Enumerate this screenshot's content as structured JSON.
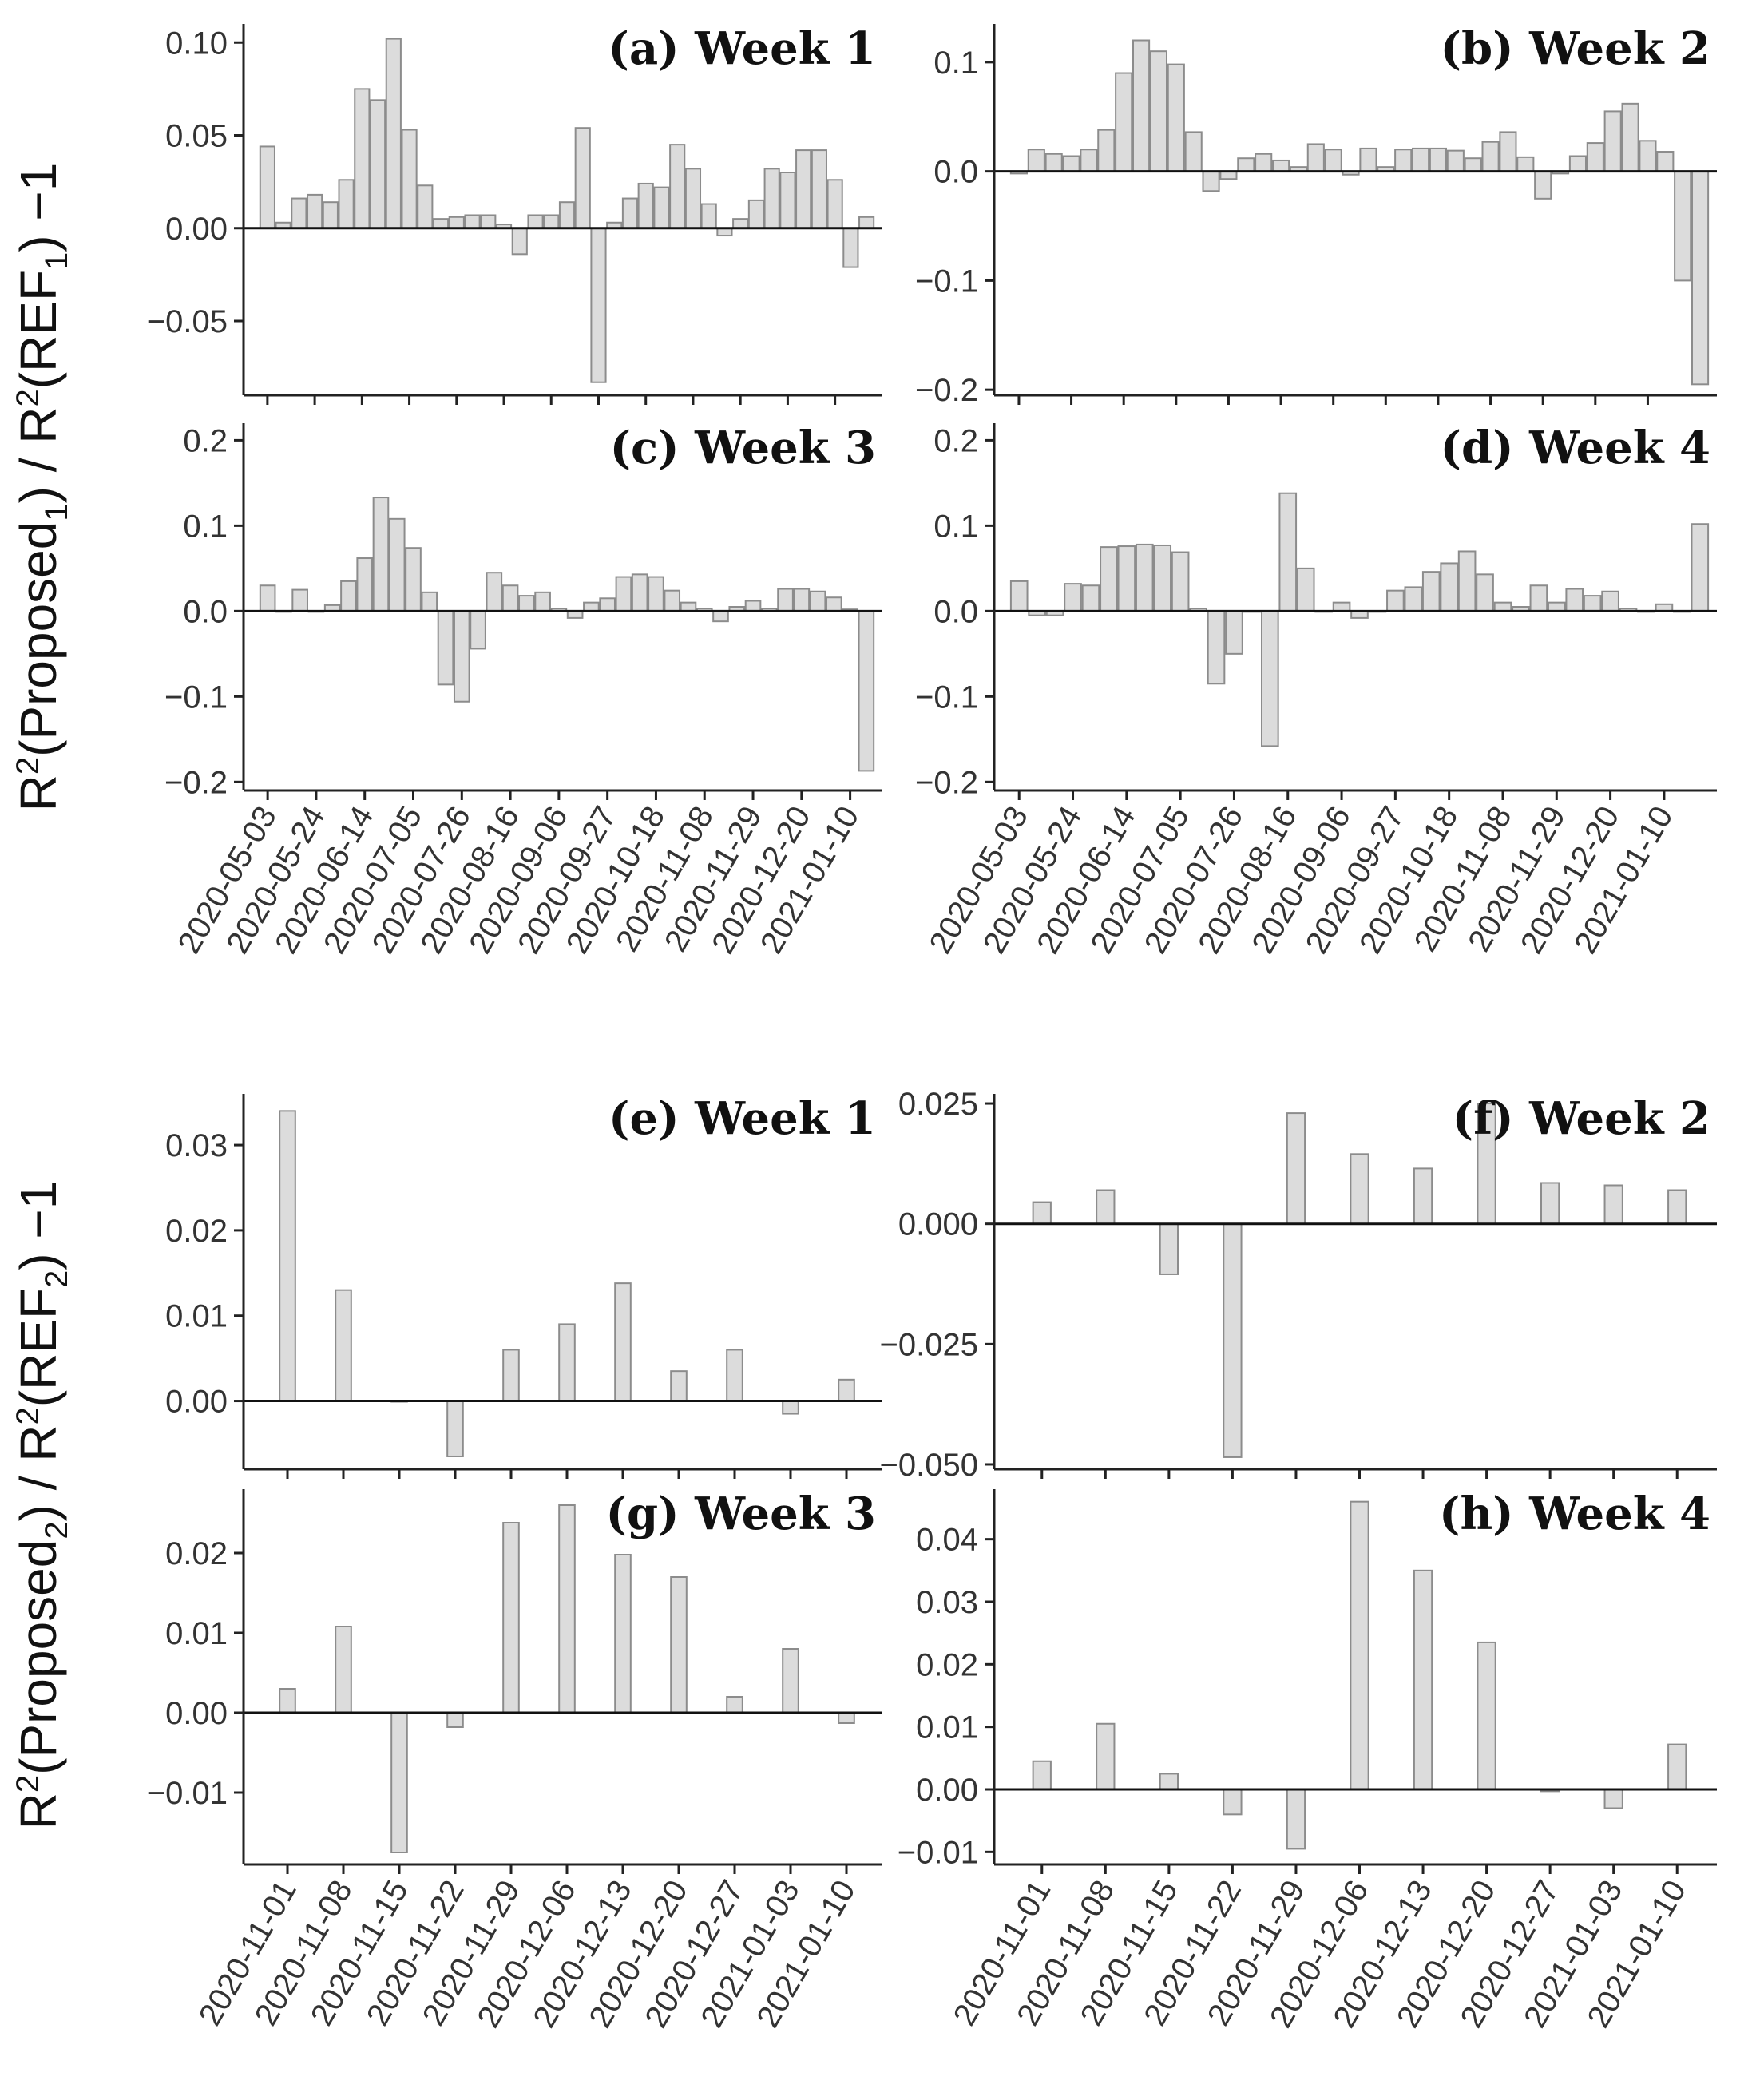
{
  "figure": {
    "ylabel_top": {
      "prefix": "R",
      "sup": "2",
      "open": "(Proposed",
      "sub": "1",
      "mid": ") / R",
      "sup2": "2",
      "open2": "(REF",
      "sub2": "1",
      "suffix": ")  −1"
    },
    "ylabel_bottom": {
      "prefix": "R",
      "sup": "2",
      "open": "(Proposed",
      "sub": "2",
      "mid": ") / R",
      "sup2": "2",
      "open2": "(REF",
      "sub2": "2",
      "suffix": ")  −1"
    }
  },
  "chart_data": [
    {
      "id": "a",
      "type": "bar",
      "title": "(a) Week 1",
      "ylim": [
        -0.09,
        0.11
      ],
      "yticks": [
        -0.05,
        0.0,
        0.05,
        0.1
      ],
      "ytick_labels": [
        "−0.05",
        "0.00",
        "0.05",
        "0.10"
      ],
      "values": [
        0.044,
        0.003,
        0.016,
        0.018,
        0.014,
        0.026,
        0.075,
        0.069,
        0.102,
        0.053,
        0.023,
        0.005,
        0.006,
        0.007,
        0.007,
        0.002,
        -0.014,
        0.007,
        0.007,
        0.014,
        0.054,
        -0.083,
        0.003,
        0.016,
        0.024,
        0.022,
        0.045,
        0.032,
        0.013,
        -0.004,
        0.005,
        0.015,
        0.032,
        0.03,
        0.042,
        0.042,
        0.026,
        -0.021,
        0.006
      ],
      "tick_positions": [
        0,
        3,
        6,
        9,
        12,
        15,
        18,
        21,
        24,
        27,
        30,
        33,
        36
      ],
      "tick_labels": [
        "2020-05-03",
        "2020-05-24",
        "2020-06-14",
        "2020-07-05",
        "2020-07-26",
        "2020-08-16",
        "2020-09-06",
        "2020-09-27",
        "2020-10-18",
        "2020-11-08",
        "2020-11-29",
        "2020-12-20",
        "2021-01-10"
      ],
      "show_xlabels": false
    },
    {
      "id": "b",
      "type": "bar",
      "title": "(b) Week 2",
      "ylim": [
        -0.205,
        0.135
      ],
      "yticks": [
        -0.2,
        -0.1,
        0.0,
        0.1
      ],
      "ytick_labels": [
        "−0.2",
        "−0.1",
        "0.0",
        "0.1"
      ],
      "values": [
        -0.002,
        0.02,
        0.016,
        0.014,
        0.02,
        0.038,
        0.09,
        0.12,
        0.11,
        0.098,
        0.036,
        -0.018,
        -0.007,
        0.012,
        0.016,
        0.01,
        0.004,
        0.025,
        0.02,
        -0.003,
        0.021,
        0.004,
        0.02,
        0.021,
        0.021,
        0.019,
        0.012,
        0.027,
        0.036,
        0.013,
        -0.025,
        -0.002,
        0.014,
        0.026,
        0.055,
        0.062,
        0.028,
        0.018,
        -0.1,
        -0.195
      ],
      "tick_positions": [
        0,
        3,
        6,
        9,
        12,
        15,
        18,
        21,
        24,
        27,
        30,
        33,
        36
      ],
      "tick_labels": [
        "2020-05-03",
        "2020-05-24",
        "2020-06-14",
        "2020-07-05",
        "2020-07-26",
        "2020-08-16",
        "2020-09-06",
        "2020-09-27",
        "2020-10-18",
        "2020-11-08",
        "2020-11-29",
        "2020-12-20",
        "2021-01-10"
      ],
      "show_xlabels": false
    },
    {
      "id": "c",
      "type": "bar",
      "title": "(c) Week 3",
      "ylim": [
        -0.21,
        0.22
      ],
      "yticks": [
        -0.2,
        -0.1,
        0.0,
        0.1,
        0.2
      ],
      "ytick_labels": [
        "−0.2",
        "−0.1",
        "0.0",
        "0.1",
        "0.2"
      ],
      "values": [
        0.03,
        0.0,
        0.025,
        0.0,
        0.007,
        0.035,
        0.062,
        0.133,
        0.108,
        0.074,
        0.022,
        -0.086,
        -0.106,
        -0.044,
        0.045,
        0.03,
        0.018,
        0.022,
        0.003,
        -0.008,
        0.01,
        0.015,
        0.04,
        0.043,
        0.04,
        0.024,
        0.01,
        0.003,
        -0.012,
        0.005,
        0.012,
        0.003,
        0.026,
        0.026,
        0.023,
        0.016,
        0.002,
        -0.187
      ],
      "tick_positions": [
        0,
        3,
        6,
        9,
        12,
        15,
        18,
        21,
        24,
        27,
        30,
        33,
        36
      ],
      "tick_labels": [
        "2020-05-03",
        "2020-05-24",
        "2020-06-14",
        "2020-07-05",
        "2020-07-26",
        "2020-08-16",
        "2020-09-06",
        "2020-09-27",
        "2020-10-18",
        "2020-11-08",
        "2020-11-29",
        "2020-12-20",
        "2021-01-10"
      ],
      "show_xlabels": true
    },
    {
      "id": "d",
      "type": "bar",
      "title": "(d) Week 4",
      "ylim": [
        -0.21,
        0.22
      ],
      "yticks": [
        -0.2,
        -0.1,
        0.0,
        0.1,
        0.2
      ],
      "ytick_labels": [
        "−0.2",
        "−0.1",
        "0.0",
        "0.1",
        "0.2"
      ],
      "values": [
        0.035,
        -0.005,
        -0.005,
        0.032,
        0.03,
        0.075,
        0.076,
        0.078,
        0.077,
        0.069,
        0.003,
        -0.085,
        -0.05,
        0.0,
        -0.158,
        0.138,
        0.05,
        0.0,
        0.01,
        -0.008,
        0.0,
        0.024,
        0.028,
        0.046,
        0.056,
        0.07,
        0.043,
        0.01,
        0.005,
        0.03,
        0.01,
        0.026,
        0.018,
        0.023,
        0.003,
        0.0,
        0.008,
        0.0,
        0.102
      ],
      "tick_positions": [
        0,
        3,
        6,
        9,
        12,
        15,
        18,
        21,
        24,
        27,
        30,
        33,
        36
      ],
      "tick_labels": [
        "2020-05-03",
        "2020-05-24",
        "2020-06-14",
        "2020-07-05",
        "2020-07-26",
        "2020-08-16",
        "2020-09-06",
        "2020-09-27",
        "2020-10-18",
        "2020-11-08",
        "2020-11-29",
        "2020-12-20",
        "2021-01-10"
      ],
      "show_xlabels": true
    },
    {
      "id": "e",
      "type": "bar",
      "title": "(e) Week 1",
      "ylim": [
        -0.008,
        0.036
      ],
      "yticks": [
        0.0,
        0.01,
        0.02,
        0.03
      ],
      "ytick_labels": [
        "0.00",
        "0.01",
        "0.02",
        "0.03"
      ],
      "values": [
        0.034,
        0.013,
        0.0,
        -0.0065,
        0.006,
        0.009,
        0.0138,
        0.0035,
        0.006,
        -0.0015,
        0.0025
      ],
      "tick_positions": [
        0,
        1,
        2,
        3,
        4,
        5,
        6,
        7,
        8,
        9,
        10
      ],
      "tick_labels": [
        "2020-11-01",
        "2020-11-08",
        "2020-11-15",
        "2020-11-22",
        "2020-11-29",
        "2020-12-06",
        "2020-12-13",
        "2020-12-20",
        "2020-12-27",
        "2021-01-03",
        "2021-01-10"
      ],
      "show_xlabels": false
    },
    {
      "id": "f",
      "type": "bar",
      "title": "(f) Week 2",
      "ylim": [
        -0.051,
        0.027
      ],
      "yticks": [
        -0.05,
        -0.025,
        0.0,
        0.025
      ],
      "ytick_labels": [
        "−0.050",
        "−0.025",
        "0.000",
        "0.025"
      ],
      "values": [
        0.0045,
        0.007,
        -0.0105,
        -0.0485,
        0.023,
        0.0145,
        0.0115,
        0.025,
        0.0085,
        0.008,
        0.007
      ],
      "tick_positions": [
        0,
        1,
        2,
        3,
        4,
        5,
        6,
        7,
        8,
        9,
        10
      ],
      "tick_labels": [
        "2020-11-01",
        "2020-11-08",
        "2020-11-15",
        "2020-11-22",
        "2020-11-29",
        "2020-12-06",
        "2020-12-13",
        "2020-12-20",
        "2020-12-27",
        "2021-01-03",
        "2021-01-10"
      ],
      "show_xlabels": false
    },
    {
      "id": "g",
      "type": "bar",
      "title": "(g) Week 3",
      "ylim": [
        -0.019,
        0.028
      ],
      "yticks": [
        -0.01,
        0.0,
        0.01,
        0.02
      ],
      "ytick_labels": [
        "−0.01",
        "0.00",
        "0.01",
        "0.02"
      ],
      "values": [
        0.003,
        0.0108,
        -0.0175,
        -0.0018,
        0.0238,
        0.026,
        0.0198,
        0.017,
        0.002,
        0.008,
        -0.0013
      ],
      "tick_positions": [
        0,
        1,
        2,
        3,
        4,
        5,
        6,
        7,
        8,
        9,
        10
      ],
      "tick_labels": [
        "2020-11-01",
        "2020-11-08",
        "2020-11-15",
        "2020-11-22",
        "2020-11-29",
        "2020-12-06",
        "2020-12-13",
        "2020-12-20",
        "2020-12-27",
        "2021-01-03",
        "2021-01-10"
      ],
      "show_xlabels": true
    },
    {
      "id": "h",
      "type": "bar",
      "title": "(h) Week 4",
      "ylim": [
        -0.012,
        0.048
      ],
      "yticks": [
        -0.01,
        0.0,
        0.01,
        0.02,
        0.03,
        0.04
      ],
      "ytick_labels": [
        "−0.01",
        "0.00",
        "0.01",
        "0.02",
        "0.03",
        "0.04"
      ],
      "values": [
        0.0045,
        0.0105,
        0.0025,
        -0.004,
        -0.0095,
        0.046,
        0.035,
        0.0235,
        -0.0003,
        -0.003,
        0.0072
      ],
      "tick_positions": [
        0,
        1,
        2,
        3,
        4,
        5,
        6,
        7,
        8,
        9,
        10
      ],
      "tick_labels": [
        "2020-11-01",
        "2020-11-08",
        "2020-11-15",
        "2020-11-22",
        "2020-11-29",
        "2020-12-06",
        "2020-12-13",
        "2020-12-20",
        "2020-12-27",
        "2021-01-03",
        "2021-01-10"
      ],
      "show_xlabels": true
    }
  ]
}
